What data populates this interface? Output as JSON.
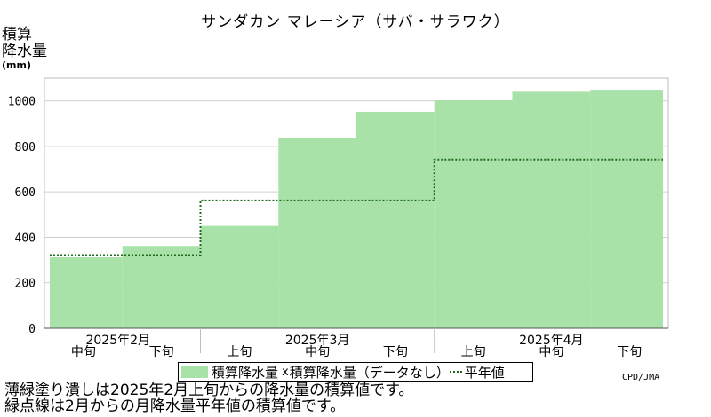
{
  "chart_data": {
    "type": "area",
    "title": "サンダカン マレーシア（サバ・サラワク）",
    "ylabel_lines": [
      "積算",
      "降水量"
    ],
    "yunit": "(mm)",
    "ylim": [
      0,
      1100
    ],
    "yticks": [
      0,
      200,
      400,
      600,
      800,
      1000
    ],
    "grid": true,
    "categories": [
      "中旬",
      "下旬",
      "上旬",
      "中旬",
      "下旬",
      "上旬",
      "中旬",
      "下旬"
    ],
    "months": [
      {
        "label": "2025年2月",
        "start": 0,
        "end": 2
      },
      {
        "label": "2025年3月",
        "start": 2,
        "end": 5
      },
      {
        "label": "2025年4月",
        "start": 5,
        "end": 8
      }
    ],
    "series": [
      {
        "name": "積算降水量",
        "kind": "area",
        "color": "#a9e2a8",
        "values": [
          312,
          362,
          450,
          838,
          952,
          1002,
          1040,
          1045
        ]
      },
      {
        "name": "平年値",
        "kind": "dotted-step",
        "color": "#1e6b1e",
        "values": [
          322,
          322,
          562,
          562,
          562,
          742,
          742,
          742
        ]
      }
    ],
    "legend": {
      "item1": "積算降水量",
      "item2": "積算降水量（データなし）",
      "item3": "平年値",
      "x_mark": "x"
    },
    "source": "CPD/JMA",
    "notes": [
      "薄緑塗り潰しは2025年2月上旬からの降水量の積算値です。",
      "緑点線は2月からの月降水量平年値の積算値です。"
    ]
  }
}
